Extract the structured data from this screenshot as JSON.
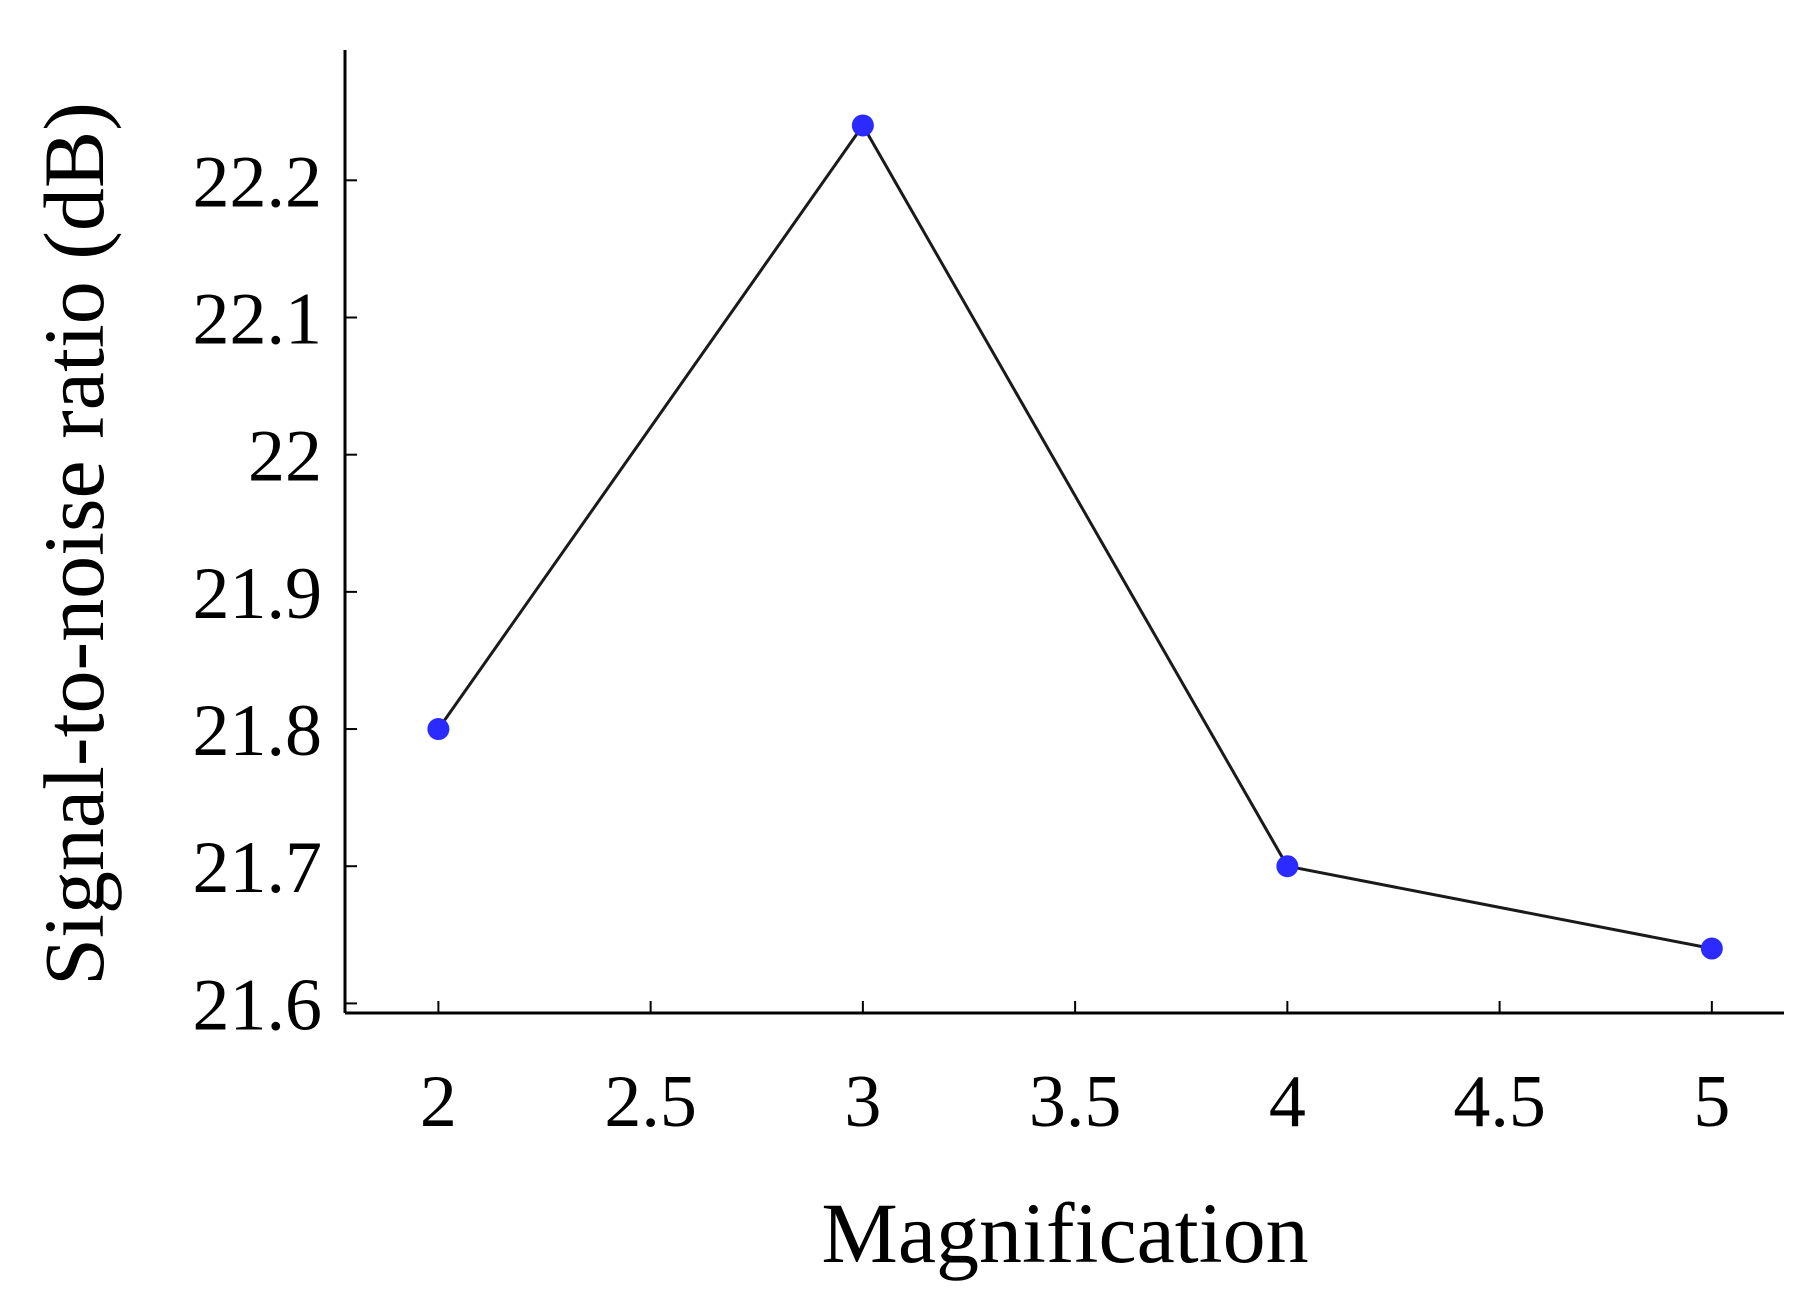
{
  "chart_data": {
    "type": "line",
    "title": "",
    "xlabel": "Magnification",
    "ylabel": "Signal-to-noise ratio (dB)",
    "x": [
      2,
      3,
      4,
      5
    ],
    "series": [
      {
        "values": [
          21.8,
          22.24,
          21.7,
          21.64
        ]
      }
    ],
    "xlim": [
      1.78,
      5.17
    ],
    "ylim": [
      21.593,
      22.295
    ],
    "xticks": [
      2,
      2.5,
      3,
      3.5,
      4,
      4.5,
      5
    ],
    "xtick_labels": [
      "2",
      "2.5",
      "3",
      "3.5",
      "4",
      "4.5",
      "5"
    ],
    "yticks": [
      21.6,
      21.7,
      21.8,
      21.9,
      22.0,
      22.1,
      22.2
    ],
    "ytick_labels": [
      "21.6",
      "21.7",
      "21.8",
      "21.9",
      "22",
      "22.1",
      "22.2"
    ],
    "grid": false,
    "legend": "none",
    "colors": {
      "line": "#1a1a1a",
      "marker": "#2b2bff",
      "axis": "#000000"
    }
  }
}
